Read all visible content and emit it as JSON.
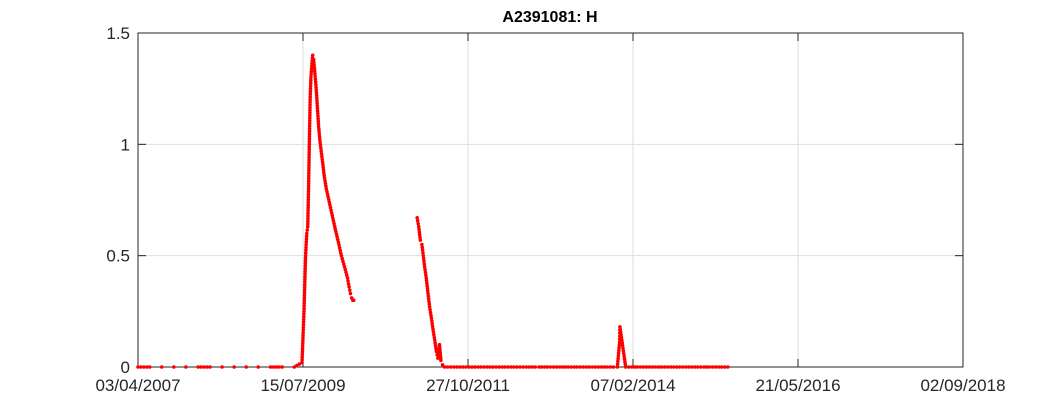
{
  "chart_data": {
    "type": "scatter",
    "title": "A2391081: H",
    "xlabel": "",
    "ylabel": "",
    "x_axis_type": "date",
    "xlim": [
      "2007-04-03",
      "2018-09-02"
    ],
    "ylim": [
      0,
      1.5
    ],
    "x_ticks": [
      "03/04/2007",
      "15/07/2009",
      "27/10/2011",
      "07/02/2014",
      "21/05/2016",
      "02/09/2018"
    ],
    "y_ticks": [
      {
        "value": 0,
        "label": "0"
      },
      {
        "value": 0.5,
        "label": "0.5"
      },
      {
        "value": 1,
        "label": "1"
      },
      {
        "value": 1.5,
        "label": "1.5"
      }
    ],
    "grid": true,
    "marker_color": "#ff0000",
    "series": [
      {
        "x": [
          "2007-04-03",
          "2007-06-01",
          "2007-08-01",
          "2007-10-01",
          "2007-12-01",
          "2008-02-01",
          "2008-04-01",
          "2008-06-01",
          "2008-08-01",
          "2008-10-01",
          "2008-12-01",
          "2009-02-01",
          "2009-04-01",
          "2009-06-01",
          "2009-07-10",
          "2009-07-20",
          "2009-07-28",
          "2009-08-03",
          "2009-08-08",
          "2009-08-12",
          "2009-08-16",
          "2009-08-20",
          "2009-08-24",
          "2009-08-28",
          "2009-09-02",
          "2009-09-07",
          "2009-09-12",
          "2009-09-17",
          "2009-09-22",
          "2009-09-27",
          "2009-10-02",
          "2009-10-08",
          "2009-10-15",
          "2009-10-22",
          "2009-10-30",
          "2009-11-10",
          "2009-11-25",
          "2009-12-10",
          "2009-12-25",
          "2010-01-10",
          "2010-01-25",
          "2010-02-10",
          "2010-02-25",
          "2010-03-05",
          "2010-03-12",
          "2010-03-18",
          "2010-03-24",
          "2010-03-28",
          "2011-02-12",
          "2011-02-20",
          "2011-02-28",
          "2011-03-08",
          "2011-03-15",
          "2011-03-22",
          "2011-03-30",
          "2011-04-08",
          "2011-04-16",
          "2011-04-25",
          "2011-05-03",
          "2011-05-12",
          "2011-05-20",
          "2011-05-28",
          "2011-06-05",
          "2011-06-12",
          "2011-06-20",
          "2011-07-01",
          "2011-08-01",
          "2011-09-01",
          "2011-10-01",
          "2011-11-01",
          "2011-12-01",
          "2012-01-01",
          "2012-02-01",
          "2012-03-01",
          "2012-04-01",
          "2012-05-01",
          "2012-06-01",
          "2012-07-01",
          "2012-08-01",
          "2012-09-01",
          "2012-10-01",
          "2012-10-20",
          "2012-12-01",
          "2013-01-01",
          "2013-02-01",
          "2013-03-01",
          "2013-04-01",
          "2013-05-01",
          "2013-06-01",
          "2013-07-01",
          "2013-08-01",
          "2013-09-01",
          "2013-10-01",
          "2013-11-01",
          "2013-11-20",
          "2013-11-25",
          "2013-12-01",
          "2013-12-03",
          "2014-01-01",
          "2014-02-01",
          "2014-03-01",
          "2014-04-01",
          "2014-05-01",
          "2014-06-01",
          "2014-07-01",
          "2014-08-01",
          "2014-09-01",
          "2014-10-01",
          "2014-11-01",
          "2014-12-01",
          "2015-01-01",
          "2015-02-01",
          "2015-03-01",
          "2015-04-01",
          "2015-05-01",
          "2015-06-01"
        ],
        "y": [
          0,
          0,
          0,
          0,
          0,
          0,
          0,
          0,
          0,
          0,
          0,
          0,
          0,
          0,
          0.02,
          0.25,
          0.5,
          0.6,
          0.63,
          0.8,
          1.0,
          1.2,
          1.3,
          1.35,
          1.4,
          1.38,
          1.33,
          1.28,
          1.22,
          1.15,
          1.08,
          1.02,
          0.97,
          0.92,
          0.86,
          0.8,
          0.74,
          0.68,
          0.62,
          0.56,
          0.5,
          0.45,
          0.4,
          0.36,
          0.33,
          0.31,
          0.3,
          0.3,
          0.67,
          0.63,
          0.57,
          0.55,
          0.5,
          0.45,
          0.4,
          0.33,
          0.27,
          0.22,
          0.17,
          0.12,
          0.07,
          0.04,
          0.1,
          0.03,
          0.01,
          0,
          0,
          0,
          0,
          0,
          0,
          0,
          0,
          0,
          0,
          0,
          0,
          0,
          0,
          0,
          0,
          0,
          0,
          0,
          0,
          0,
          0,
          0,
          0,
          0,
          0,
          0,
          0,
          0,
          0,
          0.05,
          0.11,
          0.18,
          0,
          0,
          0,
          0,
          0,
          0,
          0,
          0,
          0,
          0,
          0,
          0,
          0,
          0,
          0,
          0,
          0,
          0
        ]
      }
    ]
  }
}
